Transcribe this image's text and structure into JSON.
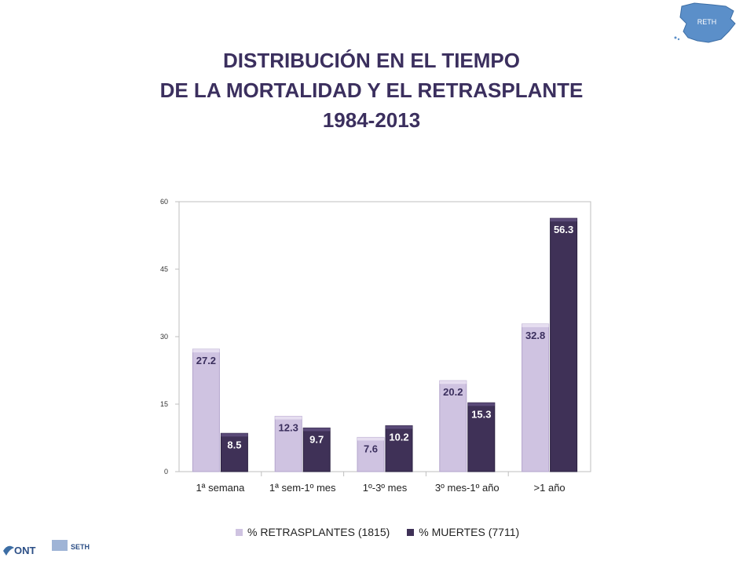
{
  "title": {
    "line1": "DISTRIBUCIÓN EN EL TIEMPO",
    "line2": "DE LA MORTALIDAD Y EL RETRASPLANTE",
    "line3": "1984-2013"
  },
  "logos": {
    "map_text": "RETH",
    "ont_text": "ONT",
    "seth_text": "SETH"
  },
  "colors": {
    "title": "#3b2f5e",
    "series1": "#cfc3e1",
    "series1_dark": "#b3a4cc",
    "series2": "#3f3157",
    "series2_dark": "#2a2040",
    "grid": "#bfbfbf",
    "map": "#5b8fc9"
  },
  "chart_data": {
    "type": "bar",
    "categories": [
      "1ª semana",
      "1ª sem-1º mes",
      "1º-3º mes",
      "3º mes-1º año",
      ">1 año"
    ],
    "series": [
      {
        "name": "% RETRASPLANTES (1815)",
        "values": [
          27.2,
          12.3,
          7.6,
          20.2,
          32.8
        ]
      },
      {
        "name": "% MUERTES (7711)",
        "values": [
          8.5,
          9.7,
          10.2,
          15.3,
          56.3
        ]
      }
    ],
    "yticks": [
      "0",
      "15",
      "30",
      "45",
      "60"
    ],
    "ylim": [
      0,
      60
    ],
    "grid": false,
    "legend": "bottom"
  }
}
